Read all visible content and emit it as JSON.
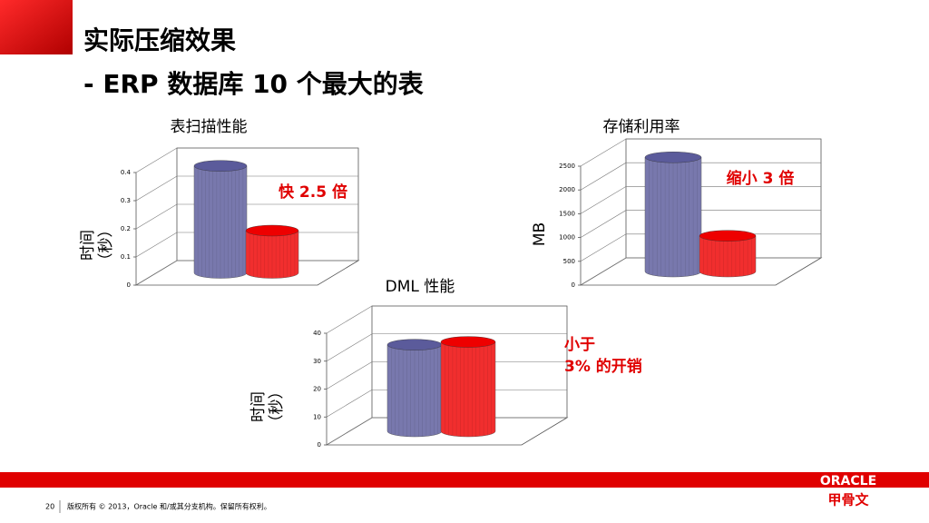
{
  "slide": {
    "title": [
      "实际压缩效果",
      "- ERP 数据库 10 个最大的表"
    ],
    "page": "20",
    "footer": "版权所有 © 2013，Oracle 和/或其分支机构。保留所有权利。",
    "logo": "ORACLE",
    "logo_cn": "甲骨文"
  },
  "chart_data": [
    {
      "type": "bar",
      "title": "表扫描性能",
      "ylabel": [
        "时间",
        "（秒）"
      ],
      "values": [
        0.38,
        0.15
      ],
      "colors": [
        "#5b5b9b",
        "#ee0000"
      ],
      "ylim": [
        0,
        0.4
      ],
      "yticks": [
        0,
        0.1,
        0.2,
        0.3,
        0.4
      ],
      "grid": true,
      "annotation": [
        "快 2.5 倍"
      ]
    },
    {
      "type": "bar",
      "title": "存储利用率",
      "ylabel": [
        "MB"
      ],
      "values": [
        2400,
        750
      ],
      "colors": [
        "#5b5b9b",
        "#ee0000"
      ],
      "ylim": [
        0,
        2500
      ],
      "yticks": [
        0,
        500,
        1000,
        1500,
        2000,
        2500
      ],
      "grid": true,
      "annotation": [
        "缩小 3 倍"
      ]
    },
    {
      "type": "bar",
      "title": "DML 性能",
      "ylabel": [
        "时间",
        "（秒）"
      ],
      "values": [
        31,
        32
      ],
      "colors": [
        "#5b5b9b",
        "#ee0000"
      ],
      "ylim": [
        0,
        40
      ],
      "yticks": [
        0,
        10,
        20,
        30,
        40
      ],
      "grid": true,
      "annotation": [
        "小于",
        "3% 的开销"
      ]
    }
  ]
}
